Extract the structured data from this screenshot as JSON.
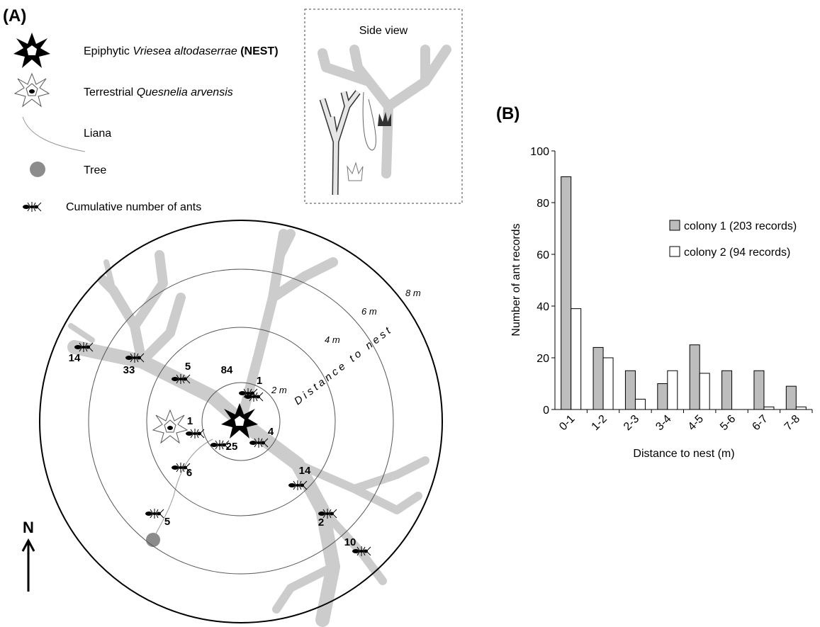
{
  "panel_a": {
    "label": "(A)",
    "legend": {
      "nest": {
        "prefix": "Epiphytic",
        "species": "Vriesea altodaserrae",
        "suffix": "(NEST)"
      },
      "terrestrial": {
        "prefix": "Terrestrial",
        "species": "Quesnelia arvensis"
      },
      "liana": "Liana",
      "tree": "Tree",
      "ants": "Cumulative number of ants"
    },
    "inset_title": "Side view",
    "north": "N",
    "ring_labels": [
      "2 m",
      "4 m",
      "6 m",
      "8 m"
    ],
    "distance_label": "Distance to nest",
    "ant_counts": [
      14,
      33,
      5,
      84,
      1,
      1,
      4,
      25,
      6,
      5,
      14,
      2,
      10
    ]
  },
  "panel_b": {
    "label": "(B)"
  },
  "chart_data": {
    "type": "bar",
    "categories": [
      "0-1",
      "1-2",
      "2-3",
      "3-4",
      "4-5",
      "5-6",
      "6-7",
      "7-8"
    ],
    "series": [
      {
        "name": "colony 1 (203 records)",
        "color": "#bdbdbd",
        "values": [
          90,
          24,
          15,
          10,
          25,
          15,
          15,
          9
        ]
      },
      {
        "name": "colony 2 (94 records)",
        "color": "#ffffff",
        "values": [
          39,
          20,
          4,
          15,
          14,
          0,
          1,
          1
        ]
      }
    ],
    "x_label": "Distance to nest (m)",
    "y_label": "Number of ant records",
    "ylim": [
      0,
      100
    ],
    "yticks": [
      0,
      20,
      40,
      60,
      80,
      100
    ],
    "legend": "right"
  }
}
